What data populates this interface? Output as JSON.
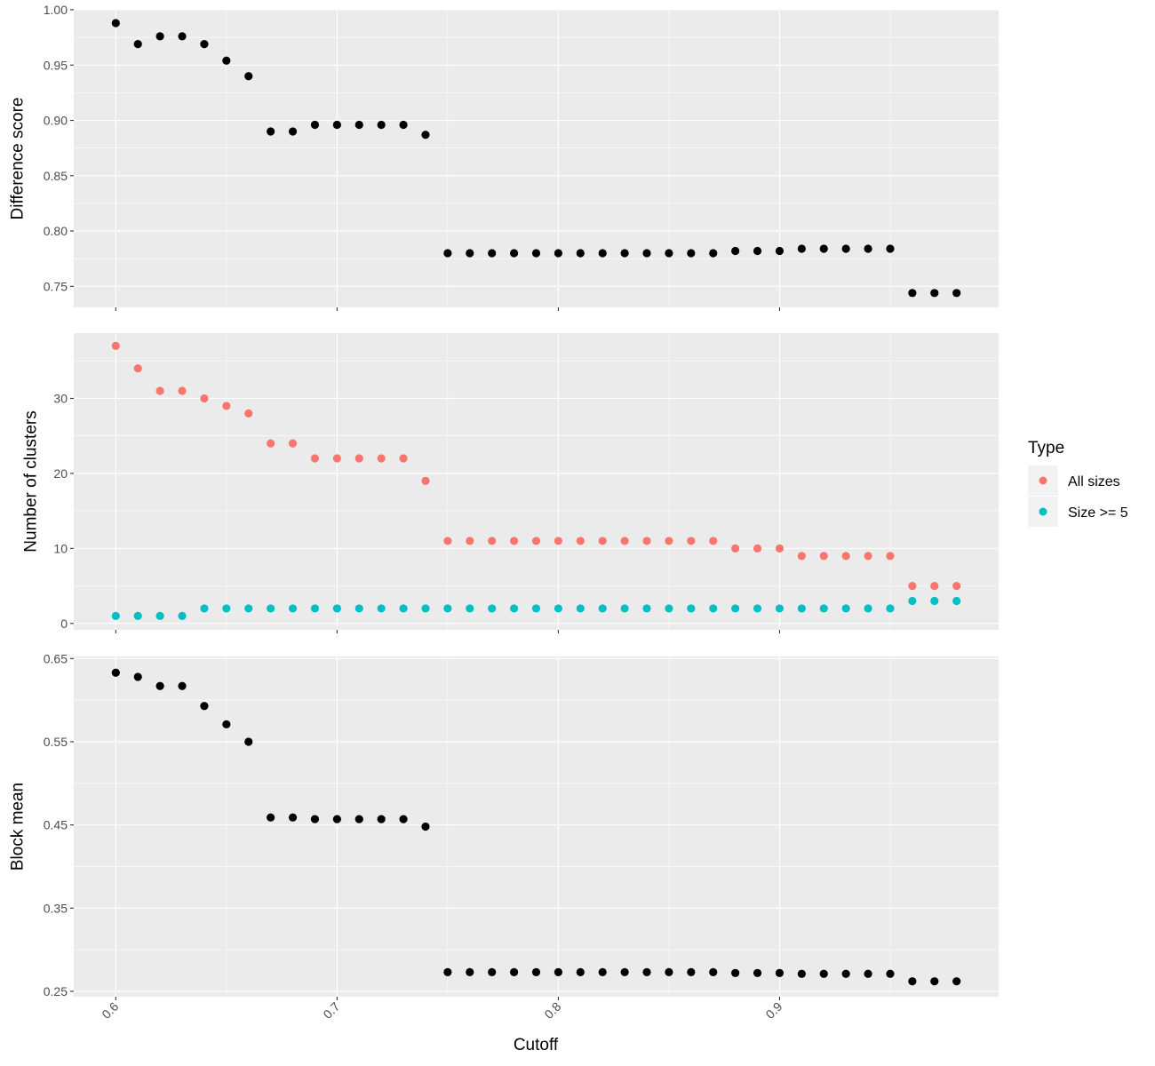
{
  "chart_data": [
    {
      "type": "scatter",
      "ylabel": "Difference score",
      "xlabel": "",
      "xlim": [
        0.581,
        0.999
      ],
      "ylim": [
        0.731,
        1.0
      ],
      "x_ticks": [
        "0.6",
        "0.7",
        "0.8",
        "0.9"
      ],
      "y_ticks": [
        "0.75",
        "0.80",
        "0.85",
        "0.90",
        "0.95",
        "1.00"
      ],
      "show_x_tick_labels": false,
      "series": [
        {
          "color": "#000000",
          "x": [
            0.6,
            0.61,
            0.62,
            0.63,
            0.64,
            0.65,
            0.66,
            0.67,
            0.68,
            0.69,
            0.7,
            0.71,
            0.72,
            0.73,
            0.74,
            0.75,
            0.76,
            0.77,
            0.78,
            0.79,
            0.8,
            0.81,
            0.82,
            0.83,
            0.84,
            0.85,
            0.86,
            0.87,
            0.88,
            0.89,
            0.9,
            0.91,
            0.92,
            0.93,
            0.94,
            0.95,
            0.96,
            0.97,
            0.98
          ],
          "y": [
            0.988,
            0.969,
            0.976,
            0.976,
            0.969,
            0.954,
            0.94,
            0.89,
            0.89,
            0.896,
            0.896,
            0.896,
            0.896,
            0.896,
            0.887,
            0.78,
            0.78,
            0.78,
            0.78,
            0.78,
            0.78,
            0.78,
            0.78,
            0.78,
            0.78,
            0.78,
            0.78,
            0.78,
            0.782,
            0.782,
            0.782,
            0.784,
            0.784,
            0.784,
            0.784,
            0.784,
            0.744,
            0.744,
            0.744
          ]
        }
      ]
    },
    {
      "type": "scatter",
      "ylabel": "Number of clusters",
      "xlabel": "",
      "xlim": [
        0.581,
        0.999
      ],
      "ylim": [
        -0.85,
        38.7
      ],
      "x_ticks": [
        "0.6",
        "0.7",
        "0.8",
        "0.9"
      ],
      "y_ticks": [
        "0",
        "10",
        "20",
        "30"
      ],
      "show_x_tick_labels": false,
      "series": [
        {
          "name": "All sizes",
          "color": "#F8766D",
          "x": [
            0.6,
            0.61,
            0.62,
            0.63,
            0.64,
            0.65,
            0.66,
            0.67,
            0.68,
            0.69,
            0.7,
            0.71,
            0.72,
            0.73,
            0.74,
            0.75,
            0.76,
            0.77,
            0.78,
            0.79,
            0.8,
            0.81,
            0.82,
            0.83,
            0.84,
            0.85,
            0.86,
            0.87,
            0.88,
            0.89,
            0.9,
            0.91,
            0.92,
            0.93,
            0.94,
            0.95,
            0.96,
            0.97,
            0.98
          ],
          "y": [
            37,
            34,
            31,
            31,
            30,
            29,
            28,
            24,
            24,
            22,
            22,
            22,
            22,
            22,
            19,
            11,
            11,
            11,
            11,
            11,
            11,
            11,
            11,
            11,
            11,
            11,
            11,
            11,
            10,
            10,
            10,
            9,
            9,
            9,
            9,
            9,
            5,
            5,
            5
          ]
        },
        {
          "name": "Size >= 5",
          "color": "#00BFC4",
          "x": [
            0.6,
            0.61,
            0.62,
            0.63,
            0.64,
            0.65,
            0.66,
            0.67,
            0.68,
            0.69,
            0.7,
            0.71,
            0.72,
            0.73,
            0.74,
            0.75,
            0.76,
            0.77,
            0.78,
            0.79,
            0.8,
            0.81,
            0.82,
            0.83,
            0.84,
            0.85,
            0.86,
            0.87,
            0.88,
            0.89,
            0.9,
            0.91,
            0.92,
            0.93,
            0.94,
            0.95,
            0.96,
            0.97,
            0.98
          ],
          "y": [
            1,
            1,
            1,
            1,
            2,
            2,
            2,
            2,
            2,
            2,
            2,
            2,
            2,
            2,
            2,
            2,
            2,
            2,
            2,
            2,
            2,
            2,
            2,
            2,
            2,
            2,
            2,
            2,
            2,
            2,
            2,
            2,
            2,
            2,
            2,
            2,
            3,
            3,
            3
          ]
        }
      ]
    },
    {
      "type": "scatter",
      "ylabel": "Block mean",
      "xlabel": "Cutoff",
      "xlim": [
        0.581,
        0.999
      ],
      "ylim": [
        0.2435,
        0.6525
      ],
      "x_ticks": [
        "0.6",
        "0.7",
        "0.8",
        "0.9"
      ],
      "y_ticks": [
        "0.25",
        "0.35",
        "0.45",
        "0.55",
        "0.65"
      ],
      "show_x_tick_labels": true,
      "series": [
        {
          "color": "#000000",
          "x": [
            0.6,
            0.61,
            0.62,
            0.63,
            0.64,
            0.65,
            0.66,
            0.67,
            0.68,
            0.69,
            0.7,
            0.71,
            0.72,
            0.73,
            0.74,
            0.75,
            0.76,
            0.77,
            0.78,
            0.79,
            0.8,
            0.81,
            0.82,
            0.83,
            0.84,
            0.85,
            0.86,
            0.87,
            0.88,
            0.89,
            0.9,
            0.91,
            0.92,
            0.93,
            0.94,
            0.95,
            0.96,
            0.97,
            0.98
          ],
          "y": [
            0.633,
            0.628,
            0.617,
            0.617,
            0.593,
            0.571,
            0.55,
            0.459,
            0.459,
            0.457,
            0.457,
            0.457,
            0.457,
            0.457,
            0.448,
            0.273,
            0.273,
            0.273,
            0.273,
            0.273,
            0.273,
            0.273,
            0.273,
            0.273,
            0.273,
            0.273,
            0.273,
            0.273,
            0.272,
            0.272,
            0.272,
            0.271,
            0.271,
            0.271,
            0.271,
            0.271,
            0.262,
            0.262,
            0.262
          ]
        }
      ]
    }
  ],
  "legend": {
    "title": "Type",
    "items": [
      {
        "label": "All sizes",
        "color": "#F8766D"
      },
      {
        "label": "Size >= 5",
        "color": "#00BFC4"
      }
    ]
  },
  "style": {
    "panel_background": "#EBEBEB",
    "grid_color": "#FFFFFF",
    "tick_color": "#333333"
  }
}
